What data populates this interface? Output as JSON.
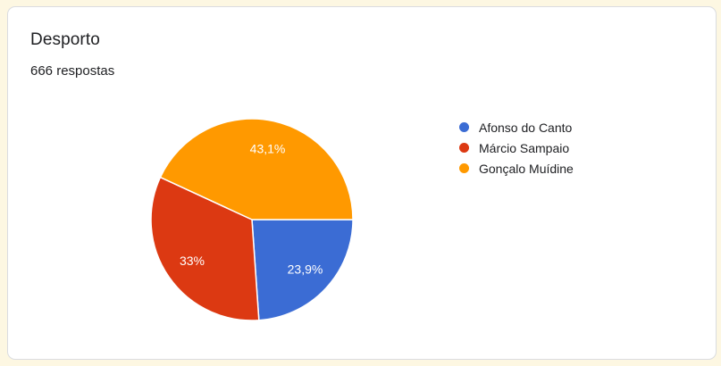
{
  "page": {
    "background_color": "#FDF7E2",
    "card_border_color": "#dadce0"
  },
  "card": {
    "title": "Desporto",
    "responses_text": "666 respostas"
  },
  "chart_data": {
    "type": "pie",
    "title": "Desporto",
    "subtitle": "666 respostas",
    "legend_position": "right",
    "start_angle_deg_clockwise_from_top": 90,
    "label_color": "#ffffff",
    "slices": [
      {
        "label": "Afonso do Canto",
        "value": 23.9,
        "display": "23,9%",
        "color": "#3B6CD4"
      },
      {
        "label": "Márcio Sampaio",
        "value": 33,
        "display": "33%",
        "color": "#DC3912"
      },
      {
        "label": "Gonçalo Muídine",
        "value": 43.1,
        "display": "43,1%",
        "color": "#FF9900"
      }
    ]
  }
}
